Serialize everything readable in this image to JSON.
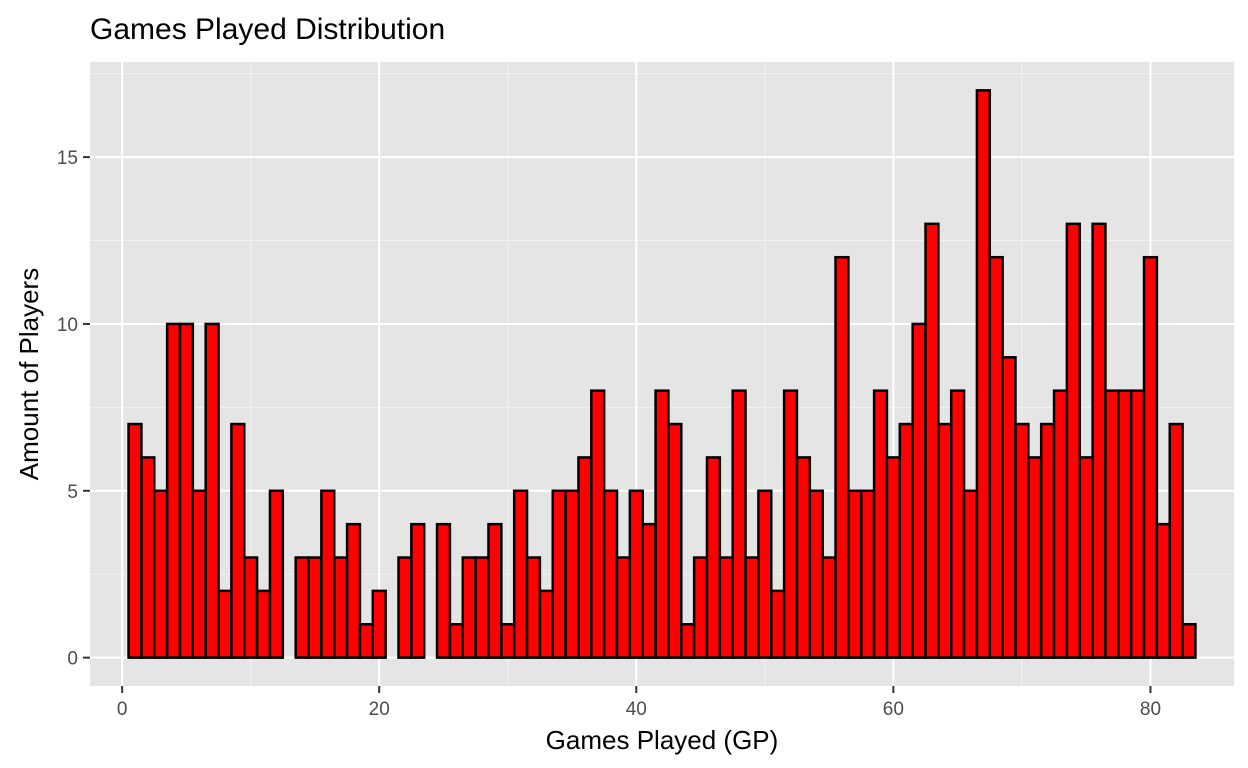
{
  "chart_data": {
    "type": "bar",
    "title": "Games Played Distribution",
    "xlabel": "Games Played (GP)",
    "ylabel": "Amount of Players",
    "xlim": [
      -2.5,
      86.5
    ],
    "ylim": [
      -0.85,
      17.85
    ],
    "xticks": [
      0,
      20,
      40,
      60,
      80
    ],
    "yticks": [
      0,
      5,
      10,
      15
    ],
    "grid": true,
    "legend": "none",
    "bin_width": 1,
    "x": [
      1,
      2,
      3,
      4,
      5,
      6,
      7,
      8,
      9,
      10,
      11,
      12,
      13,
      14,
      15,
      16,
      17,
      18,
      19,
      20,
      21,
      22,
      23,
      24,
      25,
      26,
      27,
      28,
      29,
      30,
      31,
      32,
      33,
      34,
      35,
      36,
      37,
      38,
      39,
      40,
      41,
      42,
      43,
      44,
      45,
      46,
      47,
      48,
      49,
      50,
      51,
      52,
      53,
      54,
      55,
      56,
      57,
      58,
      59,
      60,
      61,
      62,
      63,
      64,
      65,
      66,
      67,
      68,
      69,
      70,
      71,
      72,
      73,
      74,
      75,
      76,
      77,
      78,
      79,
      80,
      81,
      82,
      83
    ],
    "values": [
      7,
      6,
      5,
      10,
      10,
      5,
      10,
      2,
      7,
      3,
      2,
      5,
      0,
      3,
      3,
      5,
      3,
      4,
      1,
      2,
      0,
      3,
      4,
      0,
      4,
      1,
      3,
      3,
      4,
      1,
      5,
      3,
      2,
      5,
      5,
      6,
      8,
      5,
      3,
      5,
      4,
      8,
      7,
      1,
      3,
      6,
      3,
      8,
      3,
      5,
      2,
      8,
      6,
      5,
      3,
      12,
      5,
      5,
      8,
      6,
      7,
      10,
      13,
      7,
      8,
      5,
      17,
      12,
      9,
      7,
      6,
      7,
      8,
      13,
      6,
      13,
      8,
      8,
      8,
      12,
      4,
      7,
      1
    ],
    "colors": {
      "bar_fill": "#ff0000",
      "bar_stroke": "#000000",
      "panel": "#e5e5e5",
      "grid_major": "#ffffff",
      "grid_minor": "#f2f2f2"
    }
  }
}
